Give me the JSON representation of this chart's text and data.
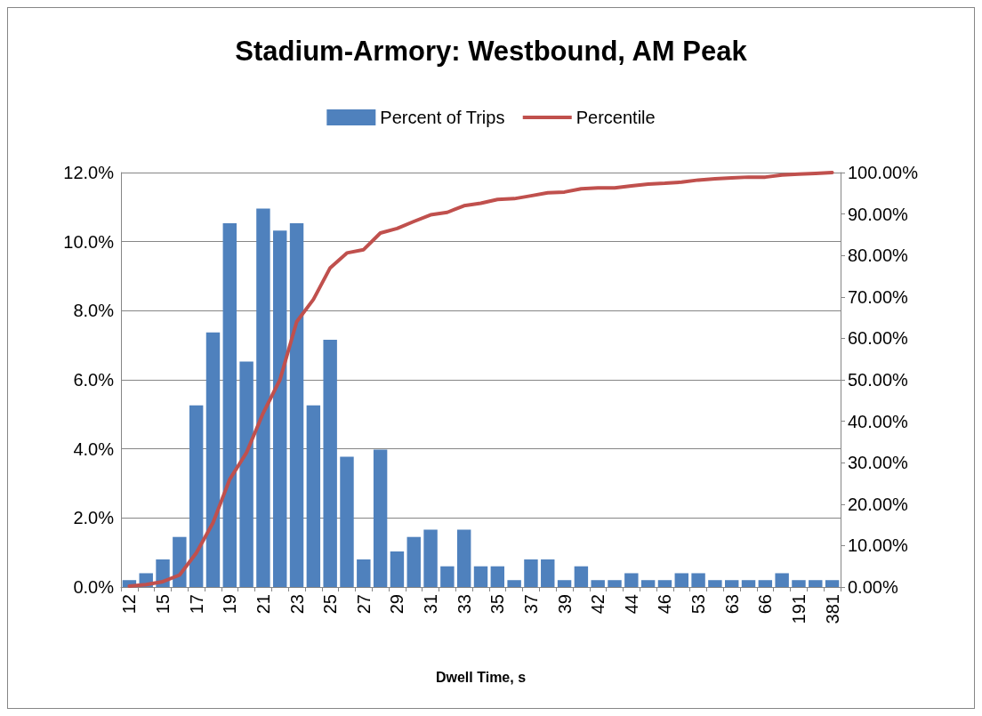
{
  "chart_data": {
    "type": "bar",
    "title": "Stadium-Armory: Westbound, AM Peak",
    "xlabel": "Dwell Time, s",
    "categories": [
      "12",
      null,
      "15",
      null,
      "17",
      null,
      "19",
      null,
      "21",
      null,
      "23",
      null,
      "25",
      null,
      "27",
      null,
      "29",
      null,
      "31",
      null,
      "33",
      null,
      "35",
      null,
      "37",
      null,
      "39",
      null,
      "42",
      null,
      "44",
      null,
      "46",
      null,
      "53",
      null,
      "63",
      null,
      "66",
      null,
      "191",
      null,
      "381"
    ],
    "series": [
      {
        "name": "Percent of Trips",
        "color": "#4f81bd",
        "values": [
          0.2,
          0.4,
          0.8,
          1.45,
          5.26,
          7.37,
          10.53,
          6.53,
          10.96,
          10.32,
          10.53,
          5.26,
          7.16,
          3.77,
          0.8,
          3.98,
          1.03,
          1.45,
          1.66,
          0.6,
          1.66,
          0.6,
          0.6,
          0.2,
          0.8,
          0.8,
          0.2,
          0.6,
          0.2,
          0.2,
          0.4,
          0.2,
          0.2,
          0.4,
          0.4,
          0.2,
          0.2,
          0.2,
          0.2,
          0.4,
          0.2,
          0.2,
          0.2
        ]
      },
      {
        "name": "Percentile",
        "type": "line",
        "axis": "y2",
        "color": "#c0504d",
        "values": [
          0.2,
          0.6,
          1.3,
          2.9,
          8.2,
          15.5,
          26,
          32.4,
          42,
          50,
          64,
          69.4,
          77,
          80.6,
          81.4,
          85.4,
          86.5,
          88.2,
          89.8,
          90.4,
          92,
          92.6,
          93.5,
          93.7,
          94.4,
          95.1,
          95.3,
          96.1,
          96.3,
          96.3,
          96.8,
          97.2,
          97.4,
          97.7,
          98.2,
          98.5,
          98.7,
          98.9,
          98.9,
          99.4,
          99.6,
          99.8,
          100
        ]
      }
    ],
    "ylim": [
      0,
      12
    ],
    "yticks": [
      {
        "value": 0,
        "label": "0.0%"
      },
      {
        "value": 2,
        "label": "2.0%"
      },
      {
        "value": 4,
        "label": "4.0%"
      },
      {
        "value": 6,
        "label": "6.0%"
      },
      {
        "value": 8,
        "label": "8.0%"
      },
      {
        "value": 10,
        "label": "10.0%"
      },
      {
        "value": 12,
        "label": "12.0%"
      }
    ],
    "y2lim": [
      0,
      100
    ],
    "y2ticks": [
      {
        "value": 0,
        "label": "0.00%"
      },
      {
        "value": 10,
        "label": "10.00%"
      },
      {
        "value": 20,
        "label": "20.00%"
      },
      {
        "value": 30,
        "label": "30.00%"
      },
      {
        "value": 40,
        "label": "40.00%"
      },
      {
        "value": 50,
        "label": "50.00%"
      },
      {
        "value": 60,
        "label": "60.00%"
      },
      {
        "value": 70,
        "label": "70.00%"
      },
      {
        "value": 80,
        "label": "80.00%"
      },
      {
        "value": 90,
        "label": "90.00%"
      },
      {
        "value": 100,
        "label": "100.00%"
      }
    ],
    "grid": "y",
    "legend": "top",
    "marker": "none",
    "line_style": "solid"
  }
}
